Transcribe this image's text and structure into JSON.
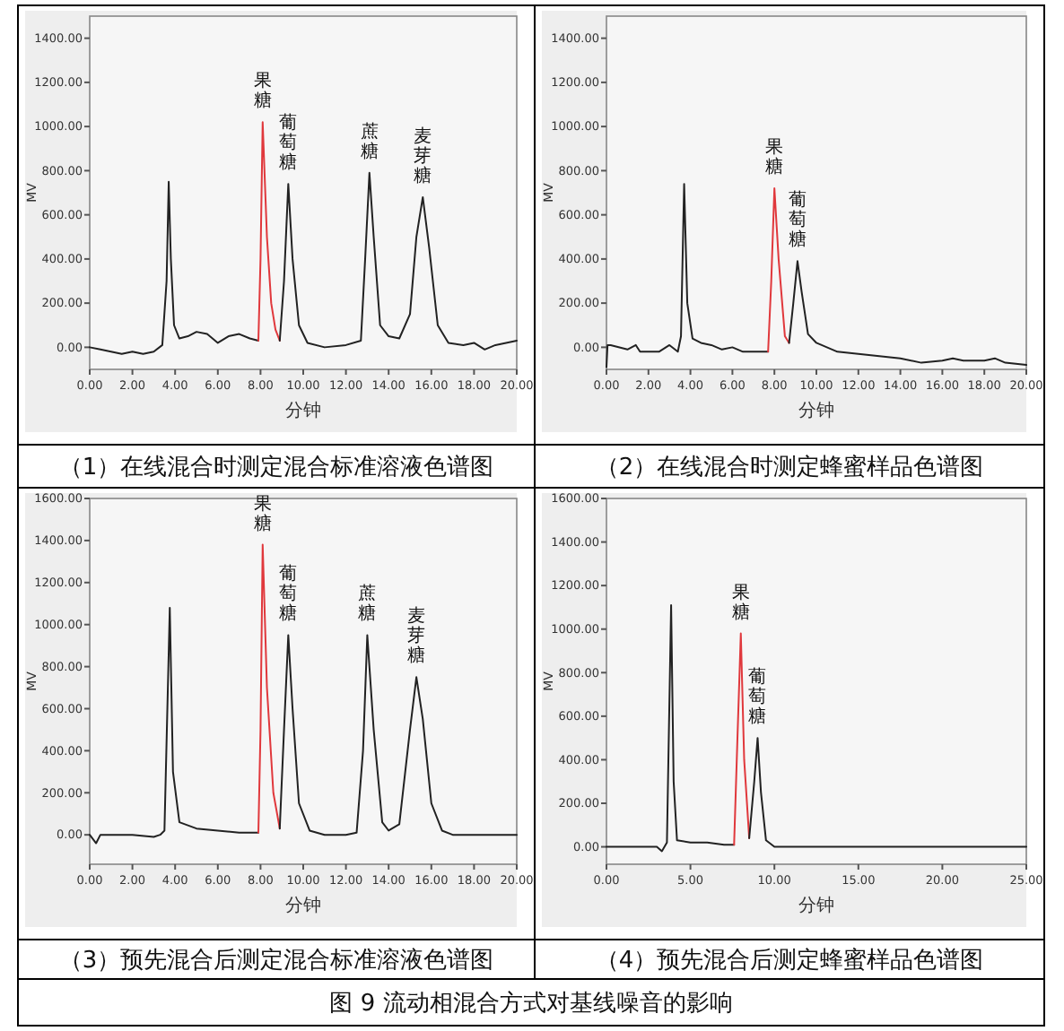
{
  "chart_data": [
    {
      "type": "line",
      "title": "（1）在线混合时测定混合标准溶液色谱图",
      "xlabel": "分钟",
      "ylabel": "MV",
      "xlim": [
        0,
        20
      ],
      "ylim": [
        -100,
        1500
      ],
      "xticks": [
        {
          "value": 0,
          "label": "0.00"
        },
        {
          "value": 2,
          "label": "2.00"
        },
        {
          "value": 4,
          "label": "4.00"
        },
        {
          "value": 6,
          "label": "6.00"
        },
        {
          "value": 8,
          "label": "8.00"
        },
        {
          "value": 10,
          "label": "10.00"
        },
        {
          "value": 12,
          "label": "12.00"
        },
        {
          "value": 14,
          "label": "14.00"
        },
        {
          "value": 16,
          "label": "16.00"
        },
        {
          "value": 18,
          "label": "18.00"
        },
        {
          "value": 20,
          "label": "20.00"
        }
      ],
      "yticks": [
        {
          "value": 0,
          "label": "0.00"
        },
        {
          "value": 200,
          "label": "200.00"
        },
        {
          "value": 400,
          "label": "400.00"
        },
        {
          "value": 600,
          "label": "600.00"
        },
        {
          "value": 800,
          "label": "800.00"
        },
        {
          "value": 1000,
          "label": "1000.00"
        },
        {
          "value": 1200,
          "label": "1200.00"
        },
        {
          "value": 1400,
          "label": "1400.00"
        }
      ],
      "grid": false,
      "series": [
        {
          "color": "#222222",
          "x": [
            0,
            0.5,
            1,
            1.5,
            2,
            2.5,
            3,
            3.4,
            3.6,
            3.7,
            3.8,
            3.95,
            4.2,
            4.6,
            5,
            5.5,
            6,
            6.5,
            7,
            7.5,
            7.9
          ],
          "values": [
            0,
            -10,
            -20,
            -30,
            -20,
            -30,
            -20,
            10,
            300,
            750,
            400,
            100,
            40,
            50,
            70,
            60,
            20,
            50,
            60,
            40,
            30
          ]
        },
        {
          "color": "#e0383c",
          "x": [
            7.9,
            8.0,
            8.1,
            8.3,
            8.5,
            8.7,
            8.9
          ],
          "values": [
            30,
            400,
            1020,
            500,
            200,
            80,
            30
          ]
        },
        {
          "color": "#222222",
          "x": [
            8.9,
            9.1,
            9.3,
            9.5,
            9.8,
            10.2,
            11,
            12,
            12.7,
            12.9,
            13.1,
            13.3,
            13.6,
            14,
            14.5,
            15,
            15.3,
            15.6,
            15.9,
            16.3,
            16.8,
            17.5,
            18,
            18.5,
            19,
            19.5,
            20
          ],
          "values": [
            30,
            300,
            740,
            400,
            100,
            20,
            0,
            10,
            30,
            400,
            790,
            500,
            100,
            50,
            40,
            150,
            500,
            680,
            450,
            100,
            20,
            10,
            20,
            -10,
            10,
            20,
            30
          ]
        }
      ],
      "annotations": [
        {
          "text": "果糖",
          "x": 8.1,
          "y": 1020
        },
        {
          "text": "葡萄糖",
          "x": 9.3,
          "y": 740
        },
        {
          "text": "蔗糖",
          "x": 13.1,
          "y": 790
        },
        {
          "text": "麦芽糖",
          "x": 15.6,
          "y": 680
        }
      ]
    },
    {
      "type": "line",
      "title": "（2）在线混合时测定蜂蜜样品色谱图",
      "xlabel": "分钟",
      "ylabel": "MV",
      "xlim": [
        0,
        20
      ],
      "ylim": [
        -100,
        1500
      ],
      "xticks": [
        {
          "value": 0,
          "label": "0.00"
        },
        {
          "value": 2,
          "label": "2.00"
        },
        {
          "value": 4,
          "label": "4.00"
        },
        {
          "value": 6,
          "label": "6.00"
        },
        {
          "value": 8,
          "label": "8.00"
        },
        {
          "value": 10,
          "label": "10.00"
        },
        {
          "value": 12,
          "label": "12.00"
        },
        {
          "value": 14,
          "label": "14.00"
        },
        {
          "value": 16,
          "label": "16.00"
        },
        {
          "value": 18,
          "label": "18.00"
        },
        {
          "value": 20,
          "label": "20.00"
        }
      ],
      "yticks": [
        {
          "value": 0,
          "label": "0.00"
        },
        {
          "value": 200,
          "label": "200.00"
        },
        {
          "value": 400,
          "label": "400.00"
        },
        {
          "value": 600,
          "label": "600.00"
        },
        {
          "value": 800,
          "label": "800.00"
        },
        {
          "value": 1000,
          "label": "1000.00"
        },
        {
          "value": 1200,
          "label": "1200.00"
        },
        {
          "value": 1400,
          "label": "1400.00"
        }
      ],
      "grid": false,
      "series": [
        {
          "color": "#222222",
          "x": [
            0,
            0.05,
            0.2,
            1,
            1.4,
            1.6,
            2.5,
            3,
            3.4,
            3.55,
            3.7,
            3.85,
            4.1,
            4.5,
            5,
            5.5,
            6,
            6.5,
            7,
            7.7
          ],
          "values": [
            -90,
            10,
            10,
            -10,
            10,
            -20,
            -20,
            10,
            -20,
            50,
            740,
            200,
            40,
            20,
            10,
            -10,
            0,
            -20,
            -20,
            -20
          ]
        },
        {
          "color": "#e0383c",
          "x": [
            7.7,
            7.85,
            8.0,
            8.2,
            8.5,
            8.7
          ],
          "values": [
            -20,
            300,
            720,
            400,
            50,
            20
          ]
        },
        {
          "color": "#222222",
          "x": [
            8.7,
            8.9,
            9.1,
            9.3,
            9.6,
            10,
            11,
            12,
            13,
            14,
            15,
            16,
            16.5,
            17,
            18,
            18.5,
            19,
            20
          ],
          "values": [
            20,
            200,
            390,
            250,
            60,
            20,
            -20,
            -30,
            -40,
            -50,
            -70,
            -60,
            -50,
            -60,
            -60,
            -50,
            -70,
            -80
          ]
        }
      ],
      "annotations": [
        {
          "text": "果糖",
          "x": 8.0,
          "y": 720
        },
        {
          "text": "葡萄糖",
          "x": 9.1,
          "y": 390
        }
      ]
    },
    {
      "type": "line",
      "title": "（3）预先混合后测定混合标准溶液色谱图",
      "xlabel": "分钟",
      "ylabel": "MV",
      "xlim": [
        0,
        20
      ],
      "ylim": [
        -140,
        1600
      ],
      "xticks": [
        {
          "value": 0,
          "label": "0.00"
        },
        {
          "value": 2,
          "label": "2.00"
        },
        {
          "value": 4,
          "label": "4.00"
        },
        {
          "value": 6,
          "label": "6.00"
        },
        {
          "value": 8,
          "label": "8.00"
        },
        {
          "value": 10,
          "label": "10.00"
        },
        {
          "value": 12,
          "label": "12.00"
        },
        {
          "value": 14,
          "label": "14.00"
        },
        {
          "value": 16,
          "label": "16.00"
        },
        {
          "value": 18,
          "label": "18.00"
        },
        {
          "value": 20,
          "label": "20.00"
        }
      ],
      "yticks": [
        {
          "value": 0,
          "label": "0.00"
        },
        {
          "value": 200,
          "label": "200.00"
        },
        {
          "value": 400,
          "label": "400.00"
        },
        {
          "value": 600,
          "label": "600.00"
        },
        {
          "value": 800,
          "label": "800.00"
        },
        {
          "value": 1000,
          "label": "1000.00"
        },
        {
          "value": 1200,
          "label": "1200.00"
        },
        {
          "value": 1400,
          "label": "1400.00"
        },
        {
          "value": 1600,
          "label": "1600.00"
        }
      ],
      "grid": false,
      "series": [
        {
          "color": "#222222",
          "x": [
            0,
            0.3,
            0.5,
            1,
            2,
            3,
            3.3,
            3.5,
            3.75,
            3.9,
            4.2,
            5,
            6,
            7,
            7.9
          ],
          "values": [
            0,
            -40,
            0,
            0,
            0,
            -10,
            0,
            20,
            1080,
            300,
            60,
            30,
            20,
            10,
            10
          ]
        },
        {
          "color": "#e0383c",
          "x": [
            7.9,
            8.0,
            8.1,
            8.3,
            8.6,
            8.9
          ],
          "values": [
            10,
            500,
            1380,
            700,
            200,
            30
          ]
        },
        {
          "color": "#222222",
          "x": [
            8.9,
            9.1,
            9.3,
            9.5,
            9.8,
            10.3,
            11,
            12,
            12.5,
            12.8,
            13.0,
            13.3,
            13.7,
            14,
            14.5,
            15,
            15.3,
            15.6,
            16,
            16.5,
            17,
            18,
            20
          ],
          "values": [
            30,
            500,
            950,
            600,
            150,
            20,
            0,
            0,
            10,
            400,
            950,
            500,
            60,
            20,
            50,
            500,
            750,
            550,
            150,
            20,
            0,
            0,
            0
          ]
        }
      ],
      "annotations": [
        {
          "text": "果糖",
          "x": 8.1,
          "y": 1380
        },
        {
          "text": "葡萄糖",
          "x": 9.3,
          "y": 950
        },
        {
          "text": "蔗糖",
          "x": 13.0,
          "y": 950
        },
        {
          "text": "麦芽糖",
          "x": 15.3,
          "y": 750
        }
      ]
    },
    {
      "type": "line",
      "title": "（4）预先混合后测定蜂蜜样品色谱图",
      "xlabel": "分钟",
      "ylabel": "MV",
      "xlim": [
        0,
        25
      ],
      "ylim": [
        -80,
        1600
      ],
      "xticks": [
        {
          "value": 0,
          "label": "0.00"
        },
        {
          "value": 5,
          "label": "5.00"
        },
        {
          "value": 10,
          "label": "10.00"
        },
        {
          "value": 15,
          "label": "15.00"
        },
        {
          "value": 20,
          "label": "20.00"
        },
        {
          "value": 25,
          "label": "25.00"
        }
      ],
      "yticks": [
        {
          "value": 0,
          "label": "0.00"
        },
        {
          "value": 200,
          "label": "200.00"
        },
        {
          "value": 400,
          "label": "400.00"
        },
        {
          "value": 600,
          "label": "600.00"
        },
        {
          "value": 800,
          "label": "800.00"
        },
        {
          "value": 1000,
          "label": "1000.00"
        },
        {
          "value": 1200,
          "label": "1200.00"
        },
        {
          "value": 1400,
          "label": "1400.00"
        },
        {
          "value": 1600,
          "label": "1600.00"
        }
      ],
      "grid": false,
      "series": [
        {
          "color": "#222222",
          "x": [
            0,
            2,
            3,
            3.3,
            3.6,
            3.85,
            4.0,
            4.2,
            5,
            6,
            7,
            7.6
          ],
          "values": [
            0,
            0,
            0,
            -20,
            20,
            1110,
            300,
            30,
            20,
            20,
            10,
            10
          ]
        },
        {
          "color": "#e0383c",
          "x": [
            7.6,
            7.8,
            8.0,
            8.2,
            8.5
          ],
          "values": [
            10,
            500,
            980,
            400,
            40
          ]
        },
        {
          "color": "#222222",
          "x": [
            8.5,
            8.8,
            9.0,
            9.2,
            9.5,
            10,
            12,
            25
          ],
          "values": [
            40,
            300,
            500,
            250,
            30,
            0,
            0,
            0
          ]
        }
      ],
      "annotations": [
        {
          "text": "果糖",
          "x": 8.0,
          "y": 980
        },
        {
          "text": "葡萄糖",
          "x": 9.0,
          "y": 500
        }
      ]
    },
    {
      "type": "other",
      "title": "图 9 流动相混合方式对基线噪音的影响"
    }
  ]
}
